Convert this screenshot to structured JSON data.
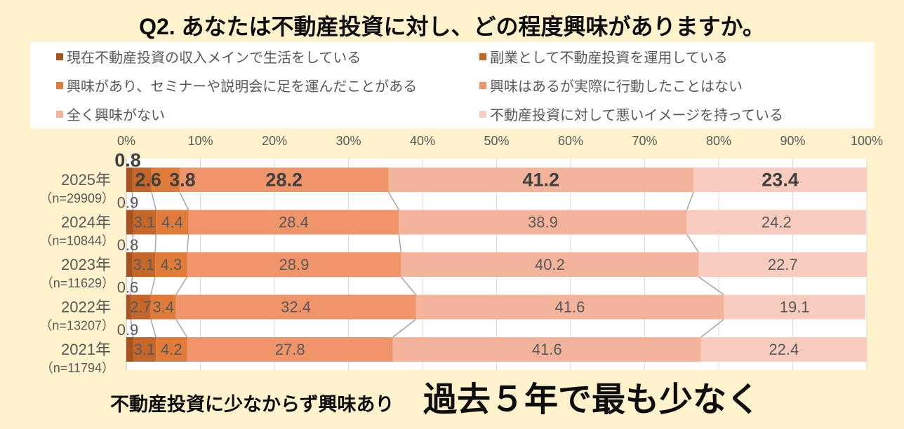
{
  "footer": {
    "lead": "不動産投資に少なからず興味あり",
    "headline": "過去５年で最も少なく"
  },
  "chart_data": {
    "type": "bar",
    "horizontal": true,
    "stacked": true,
    "percent_stacked": true,
    "title": "Q2. あなたは不動産投資に対し、どの程度興味がありますか。",
    "categories": [
      "2025年",
      "2024年",
      "2023年",
      "2022年",
      "2021年"
    ],
    "category_sublabels": [
      "（n=29909）",
      "（n=10844）",
      "（n=11629）",
      "（n=13207）",
      "（n=11794）"
    ],
    "series": [
      {
        "name": "現在不動産投資の収入メインで生活をしている",
        "color": "#a65322",
        "values": [
          0.8,
          0.9,
          0.8,
          0.6,
          0.9
        ]
      },
      {
        "name": "副業として不動産投資を運用している",
        "color": "#c5672b",
        "values": [
          2.6,
          3.1,
          3.1,
          2.7,
          3.1
        ]
      },
      {
        "name": "興味があり、セミナーや説明会に足を運んだことがある",
        "color": "#e07b39",
        "values": [
          3.8,
          4.4,
          4.3,
          3.4,
          4.2
        ]
      },
      {
        "name": "興味はあるが実際に行動したことはない",
        "color": "#f0956a",
        "values": [
          28.2,
          28.4,
          28.9,
          32.4,
          27.8
        ]
      },
      {
        "name": "全く興味がない",
        "color": "#f4b49c",
        "values": [
          41.2,
          38.9,
          40.2,
          41.6,
          41.6
        ]
      },
      {
        "name": "不動産投資に対して悪いイメージを持っている",
        "color": "#f8cdc0",
        "values": [
          23.4,
          24.2,
          22.7,
          19.1,
          22.4
        ]
      }
    ],
    "xlim": [
      0,
      100
    ],
    "x_tick_labels": [
      "0%",
      "10%",
      "20%",
      "30%",
      "40%",
      "50%",
      "60%",
      "70%",
      "80%",
      "90%",
      "100%"
    ],
    "grid": true,
    "series_lines": true,
    "legend": "top"
  }
}
